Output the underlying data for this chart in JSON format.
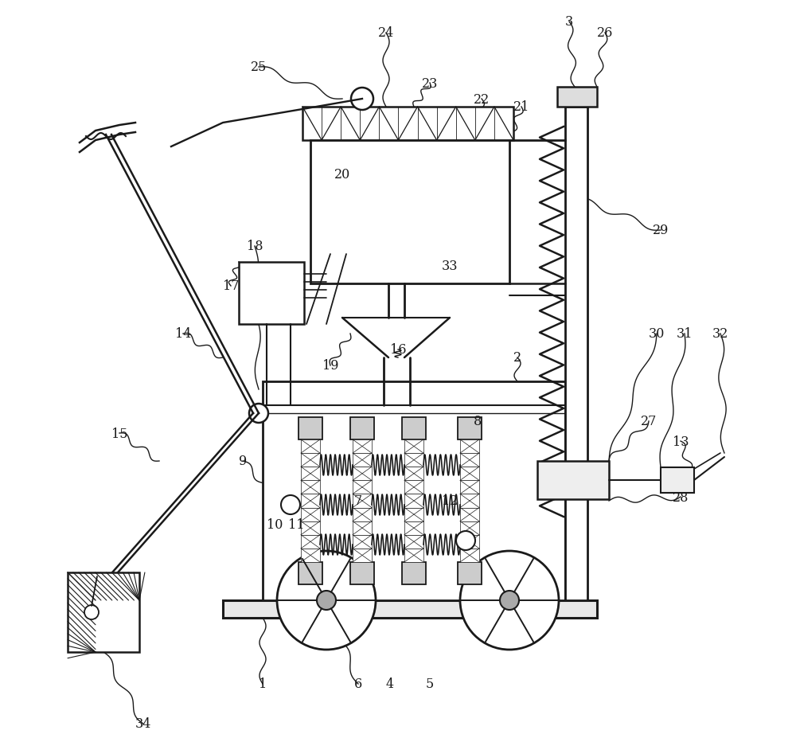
{
  "bg_color": "#ffffff",
  "line_color": "#1a1a1a",
  "lw": 1.5,
  "fig_w": 10.0,
  "fig_h": 9.28,
  "dpi": 100
}
